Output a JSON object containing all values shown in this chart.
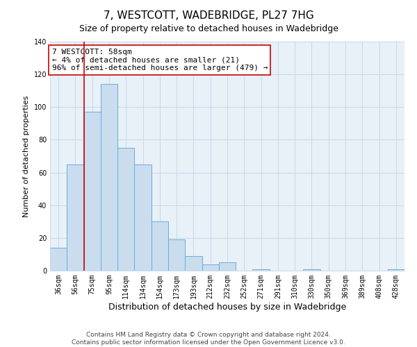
{
  "title": "7, WESTCOTT, WADEBRIDGE, PL27 7HG",
  "subtitle": "Size of property relative to detached houses in Wadebridge",
  "xlabel": "Distribution of detached houses by size in Wadebridge",
  "ylabel": "Number of detached properties",
  "bar_labels": [
    "36sqm",
    "56sqm",
    "75sqm",
    "95sqm",
    "114sqm",
    "134sqm",
    "154sqm",
    "173sqm",
    "193sqm",
    "212sqm",
    "232sqm",
    "252sqm",
    "271sqm",
    "291sqm",
    "310sqm",
    "330sqm",
    "350sqm",
    "369sqm",
    "389sqm",
    "408sqm",
    "428sqm"
  ],
  "bar_values": [
    14,
    65,
    97,
    114,
    75,
    65,
    30,
    19,
    9,
    4,
    5,
    0,
    1,
    0,
    0,
    1,
    0,
    0,
    0,
    0,
    1
  ],
  "bar_color": "#c9ddef",
  "bar_edge_color": "#6aaed6",
  "plot_bg_color": "#e8f0f8",
  "ylim": [
    0,
    140
  ],
  "yticks": [
    0,
    20,
    40,
    60,
    80,
    100,
    120,
    140
  ],
  "vline_x_index": 1,
  "vline_color": "#cc0000",
  "annotation_title": "7 WESTCOTT: 58sqm",
  "annotation_line1": "← 4% of detached houses are smaller (21)",
  "annotation_line2": "96% of semi-detached houses are larger (479) →",
  "annotation_box_color": "#ffffff",
  "annotation_box_edge": "#cc0000",
  "footer1": "Contains HM Land Registry data © Crown copyright and database right 2024.",
  "footer2": "Contains public sector information licensed under the Open Government Licence v3.0.",
  "background_color": "#ffffff",
  "grid_color": "#c8d8e8",
  "title_fontsize": 11,
  "subtitle_fontsize": 9,
  "xlabel_fontsize": 9,
  "ylabel_fontsize": 8,
  "tick_fontsize": 7,
  "annotation_fontsize": 8,
  "footer_fontsize": 6.5
}
